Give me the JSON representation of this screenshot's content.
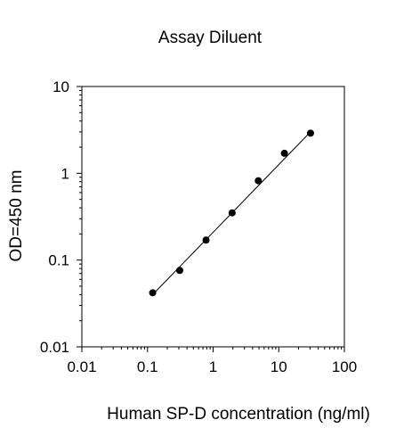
{
  "chart_data": {
    "type": "scatter",
    "title": "Assay Diluent",
    "xlabel": "Human SP-D concentration (ng/ml)",
    "ylabel": "OD=450 nm",
    "x_scale": "log",
    "y_scale": "log",
    "xlim": [
      0.01,
      100
    ],
    "ylim": [
      0.01,
      10
    ],
    "x_ticks": [
      {
        "value": 0.01,
        "label": "0.01"
      },
      {
        "value": 0.1,
        "label": "0.1"
      },
      {
        "value": 1,
        "label": "1"
      },
      {
        "value": 10,
        "label": "10"
      },
      {
        "value": 100,
        "label": "100"
      }
    ],
    "y_ticks": [
      {
        "value": 0.01,
        "label": "0.01"
      },
      {
        "value": 0.1,
        "label": "0.1"
      },
      {
        "value": 1,
        "label": "1"
      },
      {
        "value": 10,
        "label": "10"
      }
    ],
    "grid": false,
    "legend": "none",
    "series": [
      {
        "x": [
          0.12,
          0.31,
          0.78,
          1.95,
          4.88,
          12.2,
          30.5
        ],
        "y": [
          0.042,
          0.076,
          0.17,
          0.35,
          0.82,
          1.7,
          2.9
        ]
      }
    ],
    "fit_line": {
      "x": [
        0.12,
        30.5
      ],
      "y": [
        0.04,
        3.0
      ]
    },
    "colors": {
      "marker": "#000000",
      "line": "#000000",
      "axis": "#000000"
    }
  }
}
